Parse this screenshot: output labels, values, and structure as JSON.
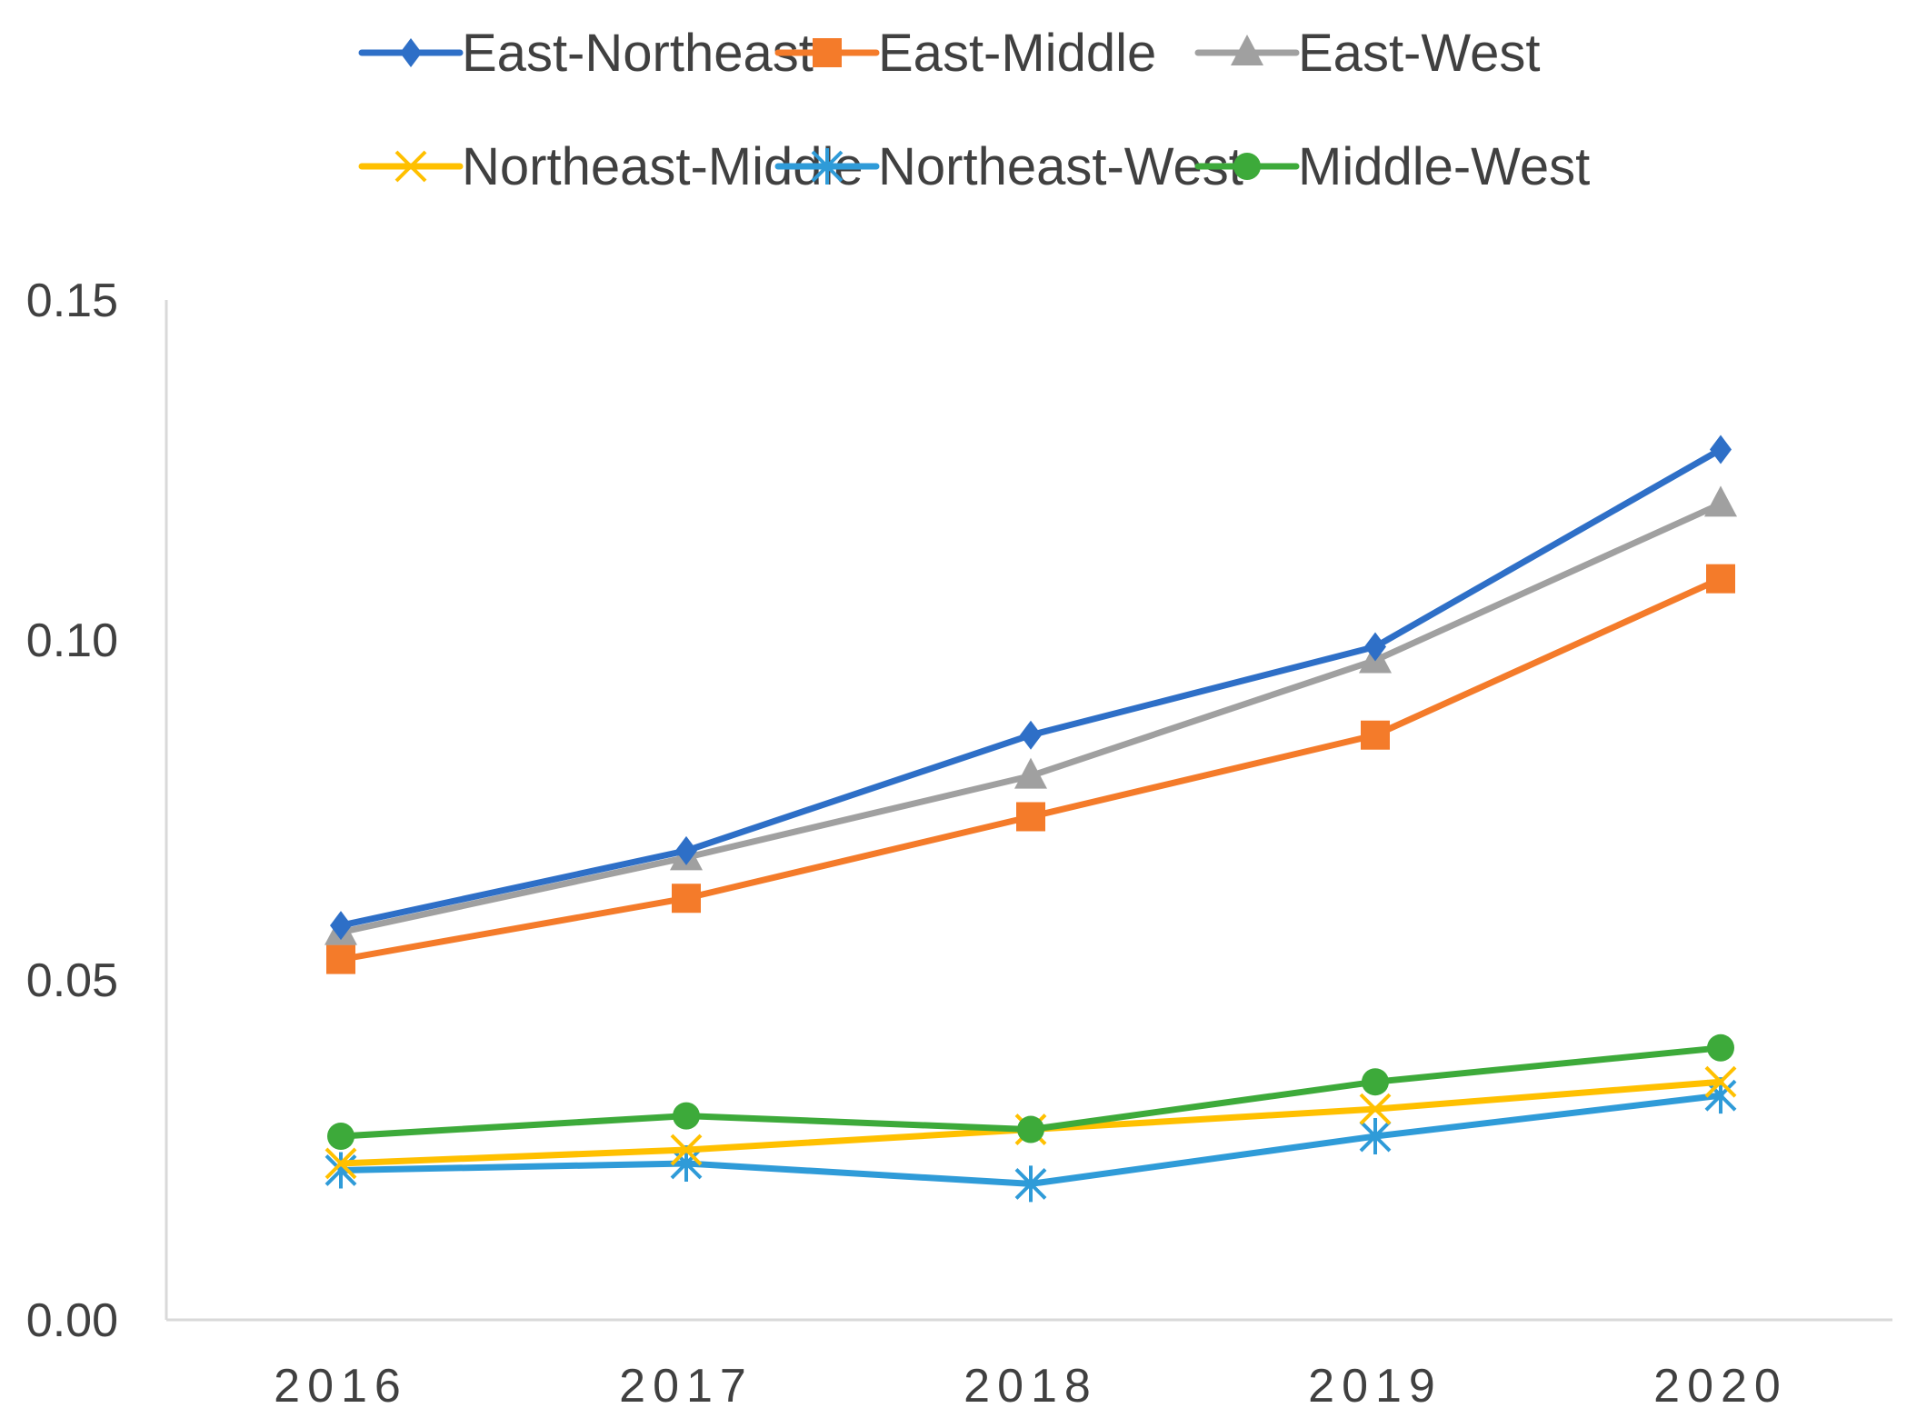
{
  "chart_data": {
    "type": "line",
    "title": "",
    "xlabel": "",
    "ylabel": "",
    "categories": [
      "2016",
      "2017",
      "2018",
      "2019",
      "2020"
    ],
    "ylim": [
      0,
      0.15
    ],
    "yticks": [
      "0.00",
      "0.05",
      "0.10",
      "0.15"
    ],
    "yticks_values": [
      0,
      0.05,
      0.1,
      0.15
    ],
    "grid": false,
    "legend_position": "top",
    "series": [
      {
        "name": "East-Northeast",
        "marker": "diamond",
        "color": "#2E6FC7",
        "values": [
          0.058,
          0.069,
          0.086,
          0.099,
          0.128
        ]
      },
      {
        "name": "East-Middle",
        "marker": "square",
        "color": "#F47B2A",
        "values": [
          0.053,
          0.062,
          0.074,
          0.086,
          0.109
        ]
      },
      {
        "name": "East-West",
        "marker": "triangle",
        "color": "#A0A0A0",
        "values": [
          0.057,
          0.068,
          0.08,
          0.097,
          0.12
        ]
      },
      {
        "name": "Northeast-Middle",
        "marker": "x",
        "color": "#FFC000",
        "values": [
          0.023,
          0.025,
          0.028,
          0.031,
          0.035
        ]
      },
      {
        "name": "Northeast-West",
        "marker": "asterisk",
        "color": "#2F9BD8",
        "values": [
          0.022,
          0.023,
          0.02,
          0.027,
          0.033
        ]
      },
      {
        "name": "Middle-West",
        "marker": "circle",
        "color": "#3DAA3A",
        "values": [
          0.027,
          0.03,
          0.028,
          0.035,
          0.04
        ]
      }
    ]
  }
}
